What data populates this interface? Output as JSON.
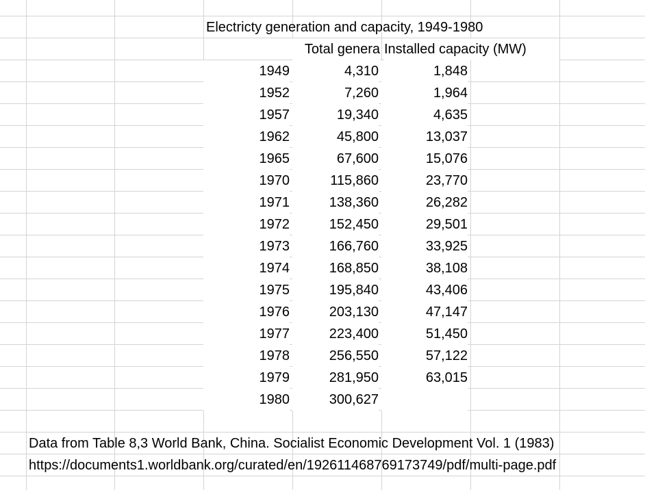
{
  "sheet": {
    "title": "Electricty generation and capacity, 1949-1980",
    "headers": {
      "generation": "Total genera",
      "capacity": "Installed capacity (MW)"
    },
    "rows": [
      {
        "year": "1949",
        "generation": "4,310",
        "capacity": "1,848"
      },
      {
        "year": "1952",
        "generation": "7,260",
        "capacity": "1,964"
      },
      {
        "year": "1957",
        "generation": "19,340",
        "capacity": "4,635"
      },
      {
        "year": "1962",
        "generation": "45,800",
        "capacity": "13,037"
      },
      {
        "year": "1965",
        "generation": "67,600",
        "capacity": "15,076"
      },
      {
        "year": "1970",
        "generation": "115,860",
        "capacity": "23,770"
      },
      {
        "year": "1971",
        "generation": "138,360",
        "capacity": "26,282"
      },
      {
        "year": "1972",
        "generation": "152,450",
        "capacity": "29,501"
      },
      {
        "year": "1973",
        "generation": "166,760",
        "capacity": "33,925"
      },
      {
        "year": "1974",
        "generation": "168,850",
        "capacity": "38,108"
      },
      {
        "year": "1975",
        "generation": "195,840",
        "capacity": "43,406"
      },
      {
        "year": "1976",
        "generation": "203,130",
        "capacity": "47,147"
      },
      {
        "year": "1977",
        "generation": "223,400",
        "capacity": "51,450"
      },
      {
        "year": "1978",
        "generation": "256,550",
        "capacity": "57,122"
      },
      {
        "year": "1979",
        "generation": "281,950",
        "capacity": "63,015"
      },
      {
        "year": "1980",
        "generation": "300,627",
        "capacity": ""
      }
    ],
    "source_note": "Data from Table 8,3 World Bank, China. Socialist Economic Development Vol. 1 (1983)",
    "source_url": "https://documents1.worldbank.org/curated/en/192611468769173749/pdf/multi-page.pdf"
  }
}
